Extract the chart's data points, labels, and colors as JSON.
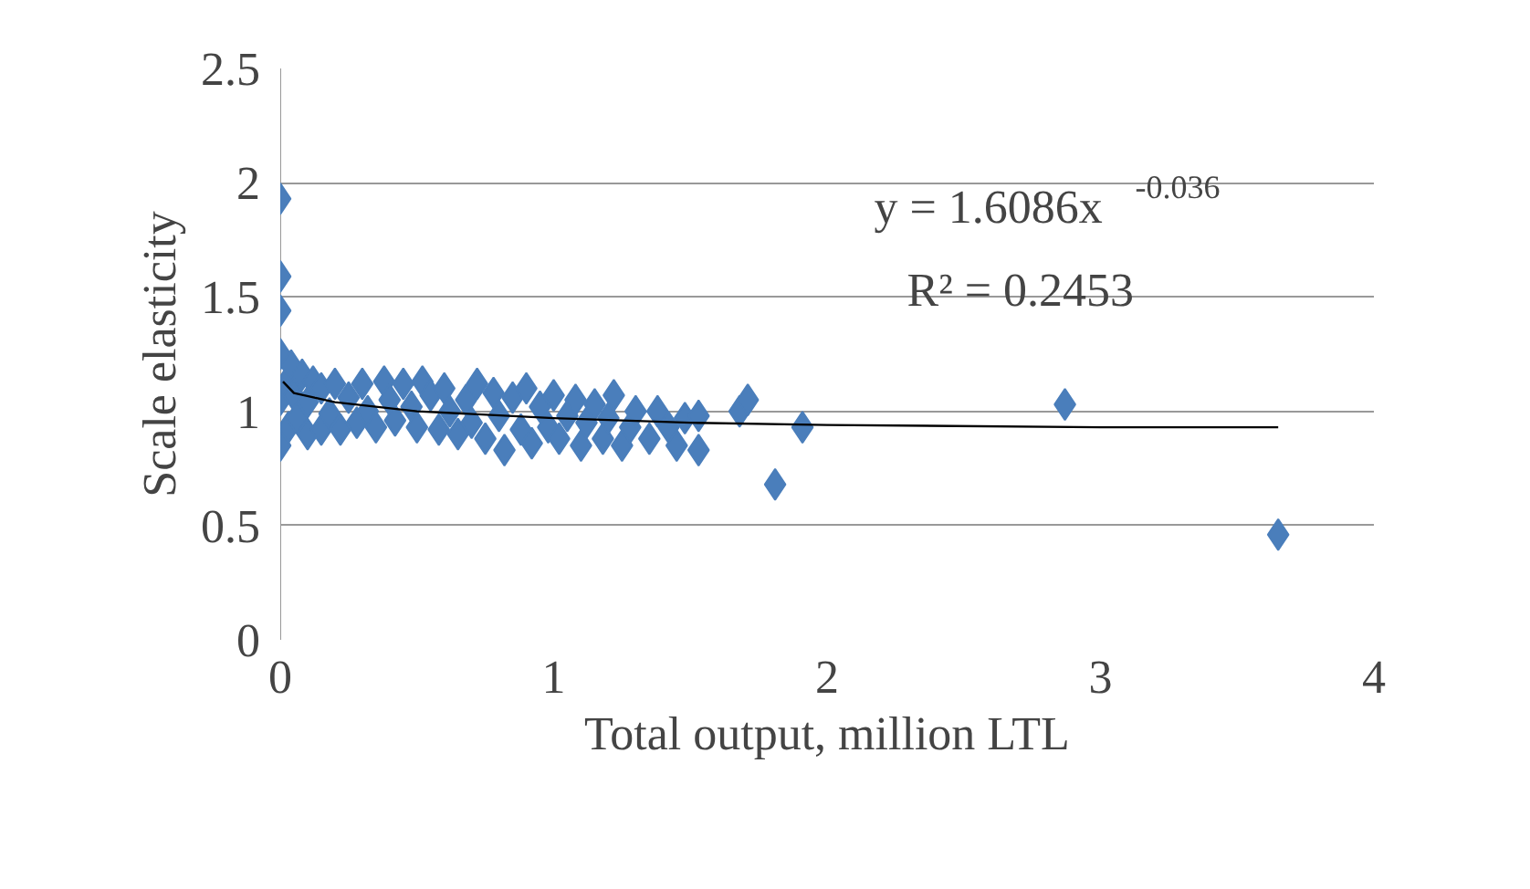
{
  "chart_data": {
    "type": "scatter",
    "xlabel": "Total output, million LTL",
    "ylabel": "Scale elasticity",
    "xlim": [
      0,
      4
    ],
    "xticks": [
      0,
      1,
      2,
      3,
      4
    ],
    "ylim": [
      0,
      2.5
    ],
    "yticks": [
      0,
      0.5,
      1,
      1.5,
      2,
      2.5
    ],
    "grid": "y",
    "marker": "diamond",
    "annotations": [
      "y = 1.6086x$^{-0.036}$",
      "R² = 0.2453"
    ],
    "series": [
      {
        "color": "#4a7ebb",
        "x": [
          0,
          0,
          0,
          0.02,
          0.03,
          0.04,
          0.05,
          0.06,
          0.08,
          0.1,
          0.1,
          0.12,
          0.15,
          0.15,
          0.18,
          0.2,
          0.22,
          0.25,
          0.28,
          0.3,
          0.32,
          0.35,
          0.38,
          0.4,
          0.42,
          0.45,
          0.48,
          0.5,
          0.52,
          0.55,
          0.58,
          0.6,
          0.62,
          0.65,
          0.68,
          0.7,
          0.72,
          0.75,
          0.78,
          0.8,
          0.82,
          0.85,
          0.88,
          0.9,
          0.92,
          0.95,
          0.98,
          1.0,
          1.02,
          1.05,
          1.08,
          1.1,
          1.12,
          1.15,
          1.18,
          1.2,
          1.22,
          1.25,
          1.28,
          1.3,
          1.35,
          1.38,
          1.42,
          1.45,
          1.48,
          1.53,
          1.53,
          1.68,
          1.71,
          1.81,
          1.91,
          2.87,
          3.65,
          0,
          0,
          0
        ],
        "values": [
          0.85,
          1.05,
          1.25,
          1.12,
          0.93,
          1.2,
          1.07,
          0.97,
          1.16,
          0.9,
          1.04,
          1.13,
          0.92,
          1.1,
          0.99,
          1.12,
          0.92,
          1.06,
          0.95,
          1.12,
          1.0,
          0.93,
          1.13,
          1.05,
          0.96,
          1.12,
          1.02,
          0.93,
          1.13,
          1.07,
          0.92,
          1.1,
          1.0,
          0.9,
          1.05,
          0.95,
          1.12,
          0.88,
          1.08,
          0.98,
          0.83,
          1.06,
          0.92,
          1.1,
          0.86,
          1.02,
          0.93,
          1.07,
          0.88,
          0.98,
          1.05,
          0.85,
          0.95,
          1.03,
          0.88,
          0.97,
          1.07,
          0.85,
          0.93,
          1.0,
          0.88,
          1.0,
          0.93,
          0.85,
          0.97,
          0.83,
          0.98,
          1.0,
          1.05,
          0.68,
          0.93,
          1.03,
          0.46,
          1.93,
          1.59,
          1.44
        ]
      },
      {
        "type": "line",
        "marker": "none",
        "color": "#000000",
        "x": [
          0.01,
          0.05,
          0.2,
          0.5,
          1.0,
          1.5,
          2.0,
          3.0,
          3.65
        ],
        "values": [
          1.13,
          1.08,
          1.04,
          1.0,
          0.97,
          0.95,
          0.94,
          0.93,
          0.93
        ]
      }
    ]
  }
}
